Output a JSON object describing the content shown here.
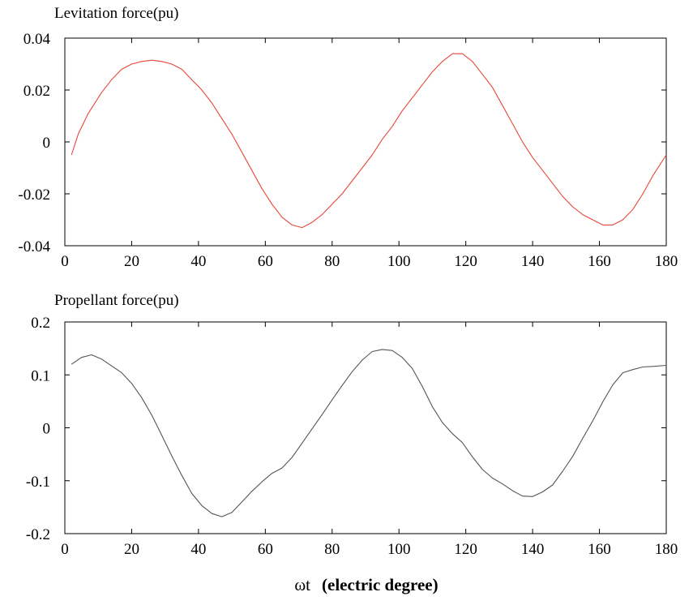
{
  "chart_data": [
    {
      "type": "line",
      "title": "Levitation force(pu)",
      "xlim": [
        0,
        180
      ],
      "ylim": [
        -0.04,
        0.04
      ],
      "xticks": [
        0,
        20,
        40,
        60,
        80,
        100,
        120,
        140,
        160,
        180
      ],
      "yticks": [
        -0.04,
        -0.02,
        0,
        0.02,
        0.04
      ],
      "xtick_labels": [
        "0",
        "20",
        "40",
        "60",
        "80",
        "100",
        "120",
        "140",
        "160",
        "180"
      ],
      "ytick_labels": [
        "-0.04",
        "-0.02",
        "0",
        "0.02",
        "0.04"
      ],
      "grid": false,
      "series": [
        {
          "color": "#e8463c",
          "x": [
            2,
            4,
            7,
            11,
            14,
            17,
            20,
            23,
            26,
            29,
            32,
            35,
            38,
            41,
            44,
            47,
            50,
            53,
            56,
            59,
            62,
            65,
            68,
            71,
            74,
            77,
            80,
            83,
            86,
            89,
            92,
            95,
            98,
            101,
            104,
            107,
            110,
            113,
            116,
            119,
            122,
            125,
            128,
            131,
            134,
            137,
            140,
            143,
            146,
            149,
            152,
            155,
            158,
            161,
            164,
            167,
            170,
            173,
            176,
            180
          ],
          "y": [
            -0.005,
            0.003,
            0.011,
            0.019,
            0.024,
            0.028,
            0.03,
            0.031,
            0.0315,
            0.031,
            0.03,
            0.028,
            0.024,
            0.02,
            0.015,
            0.009,
            0.003,
            -0.004,
            -0.011,
            -0.018,
            -0.024,
            -0.029,
            -0.032,
            -0.033,
            -0.031,
            -0.028,
            -0.024,
            -0.02,
            -0.015,
            -0.01,
            -0.005,
            0.001,
            0.006,
            0.012,
            0.017,
            0.022,
            0.027,
            0.031,
            0.034,
            0.034,
            0.031,
            0.026,
            0.021,
            0.014,
            0.007,
            0.0,
            -0.006,
            -0.011,
            -0.016,
            -0.021,
            -0.025,
            -0.028,
            -0.03,
            -0.032,
            -0.032,
            -0.03,
            -0.026,
            -0.02,
            -0.013,
            -0.005
          ]
        }
      ]
    },
    {
      "type": "line",
      "title": "Propellant force(pu)",
      "xlabel": "ωt   (electric degree)",
      "xlabel_symbol": "ωt",
      "xlabel_text": "(electric degree)",
      "xlim": [
        0,
        180
      ],
      "ylim": [
        -0.2,
        0.2
      ],
      "xticks": [
        0,
        20,
        40,
        60,
        80,
        100,
        120,
        140,
        160,
        180
      ],
      "yticks": [
        -0.2,
        -0.1,
        0,
        0.1,
        0.2
      ],
      "xtick_labels": [
        "0",
        "20",
        "40",
        "60",
        "80",
        "100",
        "120",
        "140",
        "160",
        "180"
      ],
      "ytick_labels": [
        "-0.2",
        "-0.1",
        "0",
        "0.1",
        "0.2"
      ],
      "grid": false,
      "series": [
        {
          "color": "#555555",
          "x": [
            2,
            5,
            8,
            11,
            14,
            17,
            20,
            23,
            26,
            29,
            32,
            35,
            38,
            41,
            44,
            47,
            50,
            53,
            56,
            59,
            62,
            65,
            68,
            71,
            74,
            77,
            80,
            83,
            86,
            89,
            92,
            95,
            98,
            101,
            104,
            107,
            110,
            113,
            116,
            119,
            122,
            125,
            128,
            131,
            134,
            137,
            140,
            143,
            146,
            149,
            152,
            155,
            158,
            161,
            164,
            167,
            170,
            173,
            176,
            180
          ],
          "y": [
            0.12,
            0.133,
            0.138,
            0.13,
            0.117,
            0.104,
            0.084,
            0.057,
            0.024,
            -0.014,
            -0.053,
            -0.09,
            -0.124,
            -0.147,
            -0.162,
            -0.168,
            -0.16,
            -0.14,
            -0.12,
            -0.102,
            -0.086,
            -0.076,
            -0.056,
            -0.029,
            -0.002,
            0.025,
            0.053,
            0.08,
            0.106,
            0.128,
            0.144,
            0.148,
            0.146,
            0.133,
            0.112,
            0.078,
            0.04,
            0.01,
            -0.011,
            -0.028,
            -0.055,
            -0.079,
            -0.095,
            -0.106,
            -0.119,
            -0.129,
            -0.13,
            -0.121,
            -0.108,
            -0.082,
            -0.054,
            -0.02,
            0.013,
            0.049,
            0.081,
            0.104,
            0.11,
            0.115,
            0.116,
            0.118
          ]
        }
      ]
    }
  ]
}
